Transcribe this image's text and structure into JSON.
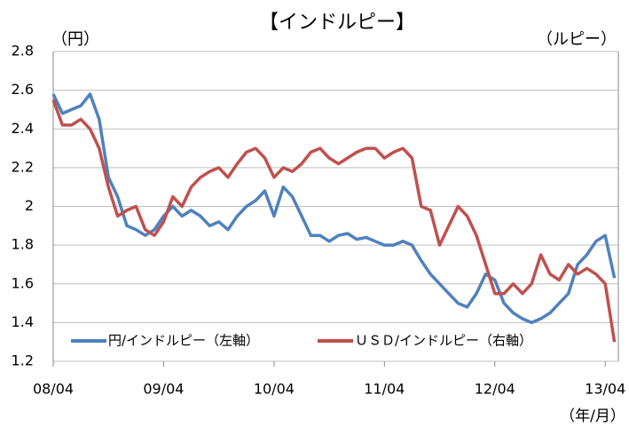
{
  "chart_data": {
    "type": "line",
    "title": "【インドルピー】",
    "y_label": "（円）",
    "y2_label": "（ルピー）",
    "x_label": "（年/月）",
    "categories": [
      "08/04",
      null,
      null,
      null,
      null,
      null,
      null,
      null,
      null,
      null,
      null,
      null,
      "09/04",
      null,
      null,
      null,
      null,
      null,
      null,
      null,
      null,
      null,
      null,
      null,
      "10/04",
      null,
      null,
      null,
      null,
      null,
      null,
      null,
      null,
      null,
      null,
      null,
      "11/04",
      null,
      null,
      null,
      null,
      null,
      null,
      null,
      null,
      null,
      null,
      null,
      "12/04",
      null,
      null,
      null,
      null,
      null,
      null,
      null,
      null,
      null,
      null,
      null,
      "13/04",
      null
    ],
    "series": [
      {
        "name": "円/インドルピー（左軸）",
        "color": "#4f81bd",
        "values": [
          2.58,
          2.48,
          2.5,
          2.52,
          2.58,
          2.45,
          2.15,
          2.05,
          1.9,
          1.88,
          1.85,
          1.88,
          1.95,
          2.0,
          1.95,
          1.98,
          1.95,
          1.9,
          1.92,
          1.88,
          1.95,
          2.0,
          2.03,
          2.08,
          1.95,
          2.1,
          2.05,
          1.95,
          1.85,
          1.85,
          1.82,
          1.85,
          1.86,
          1.83,
          1.84,
          1.82,
          1.8,
          1.8,
          1.82,
          1.8,
          1.72,
          1.65,
          1.6,
          1.55,
          1.5,
          1.48,
          1.55,
          1.65,
          1.62,
          1.5,
          1.45,
          1.42,
          1.4,
          1.42,
          1.45,
          1.5,
          1.55,
          1.7,
          1.75,
          1.82,
          1.85,
          1.63
        ]
      },
      {
        "name": "ＵＳＤ/インドルピー（右軸）",
        "color": "#c0504d",
        "values": [
          2.55,
          2.42,
          2.42,
          2.45,
          2.4,
          2.3,
          2.1,
          1.95,
          1.98,
          2.0,
          1.88,
          1.85,
          1.92,
          2.05,
          2.0,
          2.1,
          2.15,
          2.18,
          2.2,
          2.15,
          2.22,
          2.28,
          2.3,
          2.25,
          2.15,
          2.2,
          2.18,
          2.22,
          2.28,
          2.3,
          2.25,
          2.22,
          2.25,
          2.28,
          2.3,
          2.3,
          2.25,
          2.28,
          2.3,
          2.25,
          2.0,
          1.98,
          1.8,
          1.9,
          2.0,
          1.95,
          1.85,
          1.7,
          1.55,
          1.55,
          1.6,
          1.55,
          1.6,
          1.75,
          1.65,
          1.62,
          1.7,
          1.65,
          1.68,
          1.65,
          1.6,
          1.3
        ]
      }
    ],
    "ylim": [
      1.2,
      2.8
    ],
    "yticks": [
      1.2,
      1.4,
      1.6,
      1.8,
      2,
      2.2,
      2.4,
      2.6,
      2.8
    ],
    "grid": true,
    "legend": "bottom"
  }
}
